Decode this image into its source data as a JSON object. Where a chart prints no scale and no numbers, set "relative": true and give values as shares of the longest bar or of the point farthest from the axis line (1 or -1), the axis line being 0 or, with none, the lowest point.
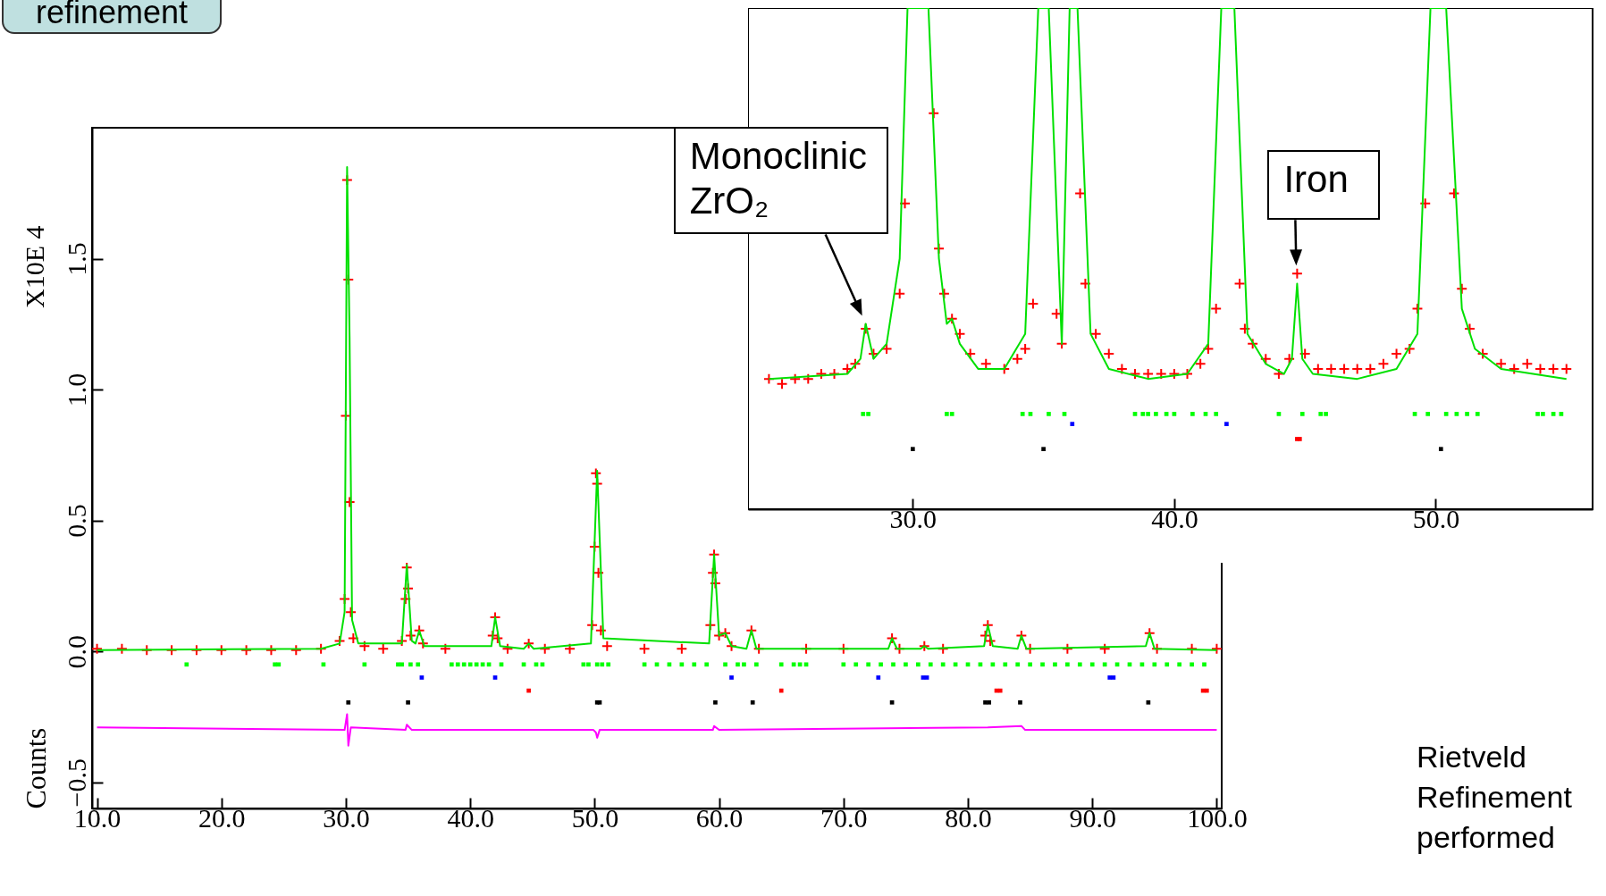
{
  "chart_data": [
    {
      "type": "line",
      "ylabel": "Counts",
      "xlim": [
        9.6,
        100.4
      ],
      "ylim": [
        -0.6,
        2.0
      ],
      "xticks": [
        {
          "value": 10,
          "label": "10.0"
        },
        {
          "value": 20,
          "label": "20.0"
        },
        {
          "value": 30,
          "label": "30.0"
        },
        {
          "value": 40,
          "label": "40.0"
        },
        {
          "value": 50,
          "label": "50.0"
        },
        {
          "value": 60,
          "label": "60.0"
        },
        {
          "value": 70,
          "label": "70.0"
        },
        {
          "value": 80,
          "label": "80.0"
        },
        {
          "value": 90,
          "label": "90.0"
        },
        {
          "value": 100,
          "label": "100.0"
        }
      ],
      "yticks": [
        {
          "value": -0.5,
          "label": "−0.5"
        },
        {
          "value": 0,
          "label": "0.0"
        },
        {
          "value": 0.5,
          "label": "0.5"
        },
        {
          "value": 1,
          "label": "1.0"
        },
        {
          "value": 1.5,
          "label": "1.5"
        }
      ],
      "grid": false,
      "annotations": [
        "X10E 4",
        "refinement",
        "Rietveld Refinement performed"
      ],
      "series": [
        {
          "type": "scatter",
          "marker": "cross",
          "color": "#ff0000",
          "x": [
            10,
            12,
            14,
            16,
            18,
            20,
            22,
            24,
            26,
            28,
            29.5,
            29.9,
            30.0,
            30.1,
            30.2,
            30.3,
            30.4,
            30.6,
            31.5,
            33,
            34.5,
            34.8,
            34.9,
            35.0,
            35.2,
            35.9,
            36.2,
            38,
            41.8,
            42.0,
            42.2,
            43,
            44.7,
            46,
            48,
            49.8,
            50.0,
            50.1,
            50.2,
            50.3,
            50.5,
            51,
            54,
            57,
            59.3,
            59.5,
            59.6,
            59.7,
            60.0,
            60.5,
            61.0,
            62.6,
            63.2,
            67,
            70,
            73.9,
            74.5,
            76.5,
            78,
            81.4,
            81.6,
            81.8,
            84.3,
            85,
            88,
            91,
            94.6,
            95.2,
            98,
            100
          ],
          "values": [
            0.01,
            0.01,
            0.005,
            0.005,
            0.005,
            0.005,
            0.005,
            0.005,
            0.005,
            0.01,
            0.04,
            0.2,
            0.9,
            1.8,
            1.42,
            0.57,
            0.15,
            0.05,
            0.02,
            0.01,
            0.04,
            0.2,
            0.32,
            0.24,
            0.06,
            0.08,
            0.03,
            0.01,
            0.06,
            0.13,
            0.05,
            0.01,
            0.03,
            0.01,
            0.01,
            0.1,
            0.4,
            0.68,
            0.64,
            0.3,
            0.08,
            0.02,
            0.01,
            0.01,
            0.1,
            0.3,
            0.37,
            0.26,
            0.06,
            0.07,
            0.02,
            0.08,
            0.01,
            0.01,
            0.01,
            0.05,
            0.01,
            0.02,
            0.01,
            0.06,
            0.1,
            0.04,
            0.06,
            0.01,
            0.01,
            0.01,
            0.07,
            0.01,
            0.01,
            0.01
          ]
        },
        {
          "color": "#00e000",
          "x": [
            10,
            28,
            29.5,
            29.9,
            30.1,
            30.3,
            30.5,
            31,
            34.5,
            34.9,
            35.3,
            35.6,
            35.9,
            36.3,
            41.7,
            42,
            42.4,
            44.3,
            44.7,
            45.1,
            49.7,
            50.2,
            50.7,
            59.2,
            59.6,
            60.0,
            60.5,
            61,
            62.2,
            62.6,
            63,
            73.6,
            73.9,
            74.3,
            76.2,
            76.5,
            76.8,
            81.3,
            81.6,
            82,
            84.0,
            84.3,
            84.7,
            94.3,
            94.6,
            95,
            100
          ],
          "values": [
            0.005,
            0.01,
            0.03,
            0.15,
            1.85,
            1.2,
            0.12,
            0.03,
            0.03,
            0.33,
            0.04,
            0.03,
            0.08,
            0.02,
            0.02,
            0.13,
            0.02,
            0.01,
            0.03,
            0.01,
            0.03,
            0.69,
            0.05,
            0.03,
            0.37,
            0.06,
            0.07,
            0.02,
            0.01,
            0.08,
            0.01,
            0.01,
            0.05,
            0.01,
            0.01,
            0.02,
            0.01,
            0.02,
            0.1,
            0.02,
            0.01,
            0.06,
            0.01,
            0.02,
            0.07,
            0.01,
            0.005
          ]
        },
        {
          "color": "#ff00ff",
          "x": [
            10,
            29.9,
            30.1,
            30.2,
            30.4,
            34.8,
            34.9,
            35.3,
            49.9,
            50.1,
            50.2,
            50.4,
            59.5,
            59.6,
            60,
            81.6,
            84.3,
            84.6,
            100
          ],
          "values": [
            -0.29,
            -0.3,
            -0.24,
            -0.36,
            -0.29,
            -0.3,
            -0.28,
            -0.3,
            -0.3,
            -0.31,
            -0.33,
            -0.3,
            -0.3,
            -0.285,
            -0.3,
            -0.29,
            -0.285,
            -0.3,
            -0.3
          ]
        },
        {
          "type": "scatter",
          "marker": "square",
          "color": "#00ff00",
          "x": [
            17.2,
            24.3,
            24.6,
            28.2,
            31.5,
            34.2,
            34.5,
            35.2,
            35.8,
            38.5,
            39,
            39.5,
            40,
            40.5,
            41,
            41.5,
            42.5,
            44.3,
            45.3,
            45.8,
            49.1,
            49.5,
            50.2,
            50.6,
            51.1,
            54,
            55,
            56,
            57,
            58,
            59,
            60.5,
            61.5,
            62,
            63,
            65,
            66,
            66.5,
            67,
            70,
            71,
            72,
            73,
            74,
            75,
            76,
            77,
            78,
            79,
            80,
            81,
            82,
            83,
            84,
            85,
            86,
            87,
            88,
            89,
            90,
            91,
            92,
            93,
            94,
            95,
            96,
            97,
            98,
            99
          ],
          "values": [
            -0.05,
            -0.05,
            -0.05,
            -0.05,
            -0.05,
            -0.05,
            -0.05,
            -0.05,
            -0.05,
            -0.05,
            -0.05,
            -0.05,
            -0.05,
            -0.05,
            -0.05,
            -0.05,
            -0.05,
            -0.05,
            -0.05,
            -0.05,
            -0.05,
            -0.05,
            -0.05,
            -0.05,
            -0.05,
            -0.05,
            -0.05,
            -0.05,
            -0.05,
            -0.05,
            -0.05,
            -0.05,
            -0.05,
            -0.05,
            -0.05,
            -0.05,
            -0.05,
            -0.05,
            -0.05,
            -0.05,
            -0.05,
            -0.05,
            -0.05,
            -0.05,
            -0.05,
            -0.05,
            -0.05,
            -0.05,
            -0.05,
            -0.05,
            -0.05,
            -0.05,
            -0.05,
            -0.05,
            -0.05,
            -0.05,
            -0.05,
            -0.05,
            -0.05,
            -0.05,
            -0.05,
            -0.05,
            -0.05,
            -0.05,
            -0.05,
            -0.05,
            -0.05,
            -0.05,
            -0.05
          ]
        },
        {
          "type": "scatter",
          "marker": "square",
          "color": "#0000ff",
          "x": [
            36.1,
            42.0,
            61.0,
            72.8,
            76.4,
            76.7,
            91.4,
            91.7
          ],
          "values": [
            -0.1,
            -0.1,
            -0.1,
            -0.1,
            -0.1,
            -0.1,
            -0.1,
            -0.1
          ]
        },
        {
          "type": "scatter",
          "marker": "square",
          "color": "#ff0000",
          "x": [
            44.7,
            65.0,
            82.3,
            82.6,
            98.9,
            99.2
          ],
          "values": [
            -0.15,
            -0.15,
            -0.15,
            -0.15,
            -0.15,
            -0.15
          ]
        },
        {
          "type": "scatter",
          "marker": "square",
          "color": "#000000",
          "x": [
            30.2,
            35.0,
            50.2,
            50.4,
            59.7,
            62.7,
            73.9,
            81.4,
            81.7,
            84.2,
            94.5
          ],
          "values": [
            -0.195,
            -0.195,
            -0.195,
            -0.195,
            -0.195,
            -0.195,
            -0.195,
            -0.195,
            -0.195,
            -0.195,
            -0.195
          ]
        }
      ]
    },
    {
      "type": "line",
      "relative": true,
      "xlim": [
        23.7,
        56.0
      ],
      "xticks": [
        {
          "value": 30,
          "label": "30.0"
        },
        {
          "value": 40,
          "label": "40.0"
        },
        {
          "value": 50,
          "label": "50.0"
        }
      ],
      "grid": false,
      "annotations": [
        {
          "text": "Monoclinic ZrO₂",
          "x": 28.2,
          "y": 0.37
        },
        {
          "text": "Iron",
          "x": 44.7,
          "y": 0.47
        }
      ],
      "series": [
        {
          "type": "scatter",
          "marker": "cross",
          "color": "#ff0000",
          "x": [
            24.5,
            25,
            25.5,
            26,
            26.5,
            27,
            27.5,
            27.8,
            28.2,
            28.5,
            29,
            29.5,
            29.7,
            30.8,
            31,
            31.2,
            31.5,
            31.8,
            32.2,
            32.8,
            33.5,
            34,
            34.3,
            34.6,
            35.5,
            35.7,
            36.4,
            36.6,
            37,
            37.5,
            38,
            38.5,
            39,
            39.5,
            40,
            40.5,
            41,
            41.3,
            41.6,
            42.5,
            42.7,
            43,
            43.5,
            44,
            44.4,
            44.7,
            45,
            45.5,
            46,
            46.5,
            47,
            47.5,
            48,
            48.5,
            49,
            49.3,
            49.6,
            50.7,
            51,
            51.3,
            51.8,
            52.5,
            53,
            53.5,
            54,
            54.5,
            55
          ],
          "values": [
            0.26,
            0.25,
            0.26,
            0.26,
            0.27,
            0.27,
            0.28,
            0.29,
            0.36,
            0.31,
            0.32,
            0.43,
            0.61,
            0.79,
            0.52,
            0.43,
            0.38,
            0.35,
            0.31,
            0.29,
            0.28,
            0.3,
            0.32,
            0.41,
            0.39,
            0.33,
            0.63,
            0.45,
            0.35,
            0.31,
            0.28,
            0.27,
            0.27,
            0.27,
            0.27,
            0.27,
            0.29,
            0.32,
            0.4,
            0.45,
            0.36,
            0.33,
            0.3,
            0.27,
            0.3,
            0.47,
            0.31,
            0.28,
            0.28,
            0.28,
            0.28,
            0.28,
            0.29,
            0.31,
            0.32,
            0.4,
            0.61,
            0.63,
            0.44,
            0.36,
            0.31,
            0.29,
            0.28,
            0.29,
            0.28,
            0.28,
            0.28
          ]
        },
        {
          "color": "#00e000",
          "x": [
            24.5,
            27.5,
            28.0,
            28.2,
            28.5,
            29.0,
            29.5,
            29.8,
            30.6,
            31.0,
            31.3,
            31.5,
            31.8,
            32.5,
            33.5,
            34.3,
            34.8,
            35.2,
            35.7,
            36.0,
            36.3,
            36.8,
            37.5,
            39,
            40.5,
            41.3,
            41.8,
            42.3,
            42.8,
            43.5,
            44.2,
            44.5,
            44.7,
            44.9,
            45.3,
            47,
            48.5,
            49.3,
            49.8,
            50.4,
            51.0,
            51.5,
            52.5,
            55
          ],
          "values": [
            0.26,
            0.27,
            0.3,
            0.37,
            0.3,
            0.33,
            0.5,
            1,
            1,
            0.5,
            0.37,
            0.38,
            0.33,
            0.28,
            0.28,
            0.35,
            1,
            1,
            0.33,
            1,
            1,
            0.35,
            0.28,
            0.26,
            0.27,
            0.33,
            1,
            1,
            0.35,
            0.29,
            0.27,
            0.3,
            0.45,
            0.3,
            0.27,
            0.26,
            0.28,
            0.35,
            1,
            1,
            0.4,
            0.32,
            0.28,
            0.26
          ]
        },
        {
          "type": "scatter",
          "marker": "square",
          "color": "#00ff00",
          "x": [
            28.1,
            28.3,
            31.3,
            31.5,
            34.2,
            34.5,
            35.2,
            35.8,
            38.5,
            38.8,
            39,
            39.3,
            39.7,
            40,
            40.7,
            41.2,
            41.6,
            44.0,
            44.9,
            45.6,
            45.8,
            49.2,
            49.7,
            50.4,
            50.8,
            51.2,
            51.6,
            53.9,
            54.1,
            54.5,
            54.8
          ],
          "values": [
            0.19,
            0.19,
            0.19,
            0.19,
            0.19,
            0.19,
            0.19,
            0.19,
            0.19,
            0.19,
            0.19,
            0.19,
            0.19,
            0.19,
            0.19,
            0.19,
            0.19,
            0.19,
            0.19,
            0.19,
            0.19,
            0.19,
            0.19,
            0.19,
            0.19,
            0.19,
            0.19,
            0.19,
            0.19,
            0.19,
            0.19
          ]
        },
        {
          "type": "scatter",
          "marker": "square",
          "color": "#0000ff",
          "x": [
            36.1,
            42.0
          ],
          "values": [
            0.17,
            0.17
          ]
        },
        {
          "type": "scatter",
          "marker": "square",
          "color": "#ff0000",
          "x": [
            44.7,
            44.8
          ],
          "values": [
            0.14,
            0.14
          ]
        },
        {
          "type": "scatter",
          "marker": "square",
          "color": "#000000",
          "x": [
            30.0,
            35.0,
            50.2
          ],
          "values": [
            0.12,
            0.12,
            0.12
          ]
        }
      ]
    }
  ]
}
